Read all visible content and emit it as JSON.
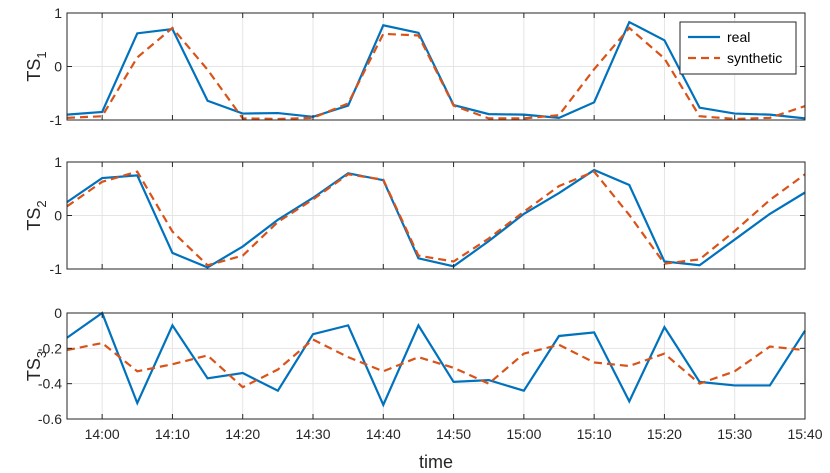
{
  "chart_data": [
    {
      "type": "line",
      "ylabel": "TS",
      "ylabel_sub": "1",
      "ylim": [
        -1,
        1
      ],
      "yticks": [
        -1,
        0,
        1
      ],
      "ytick_labels": [
        "-1",
        "0",
        "1"
      ],
      "grid": true,
      "legend": "top-right",
      "x": [
        "13:55",
        "14:00",
        "14:05",
        "14:10",
        "14:15",
        "14:20",
        "14:25",
        "14:30",
        "14:35",
        "14:40",
        "14:45",
        "14:50",
        "14:55",
        "15:00",
        "15:05",
        "15:10",
        "15:15",
        "15:20",
        "15:25",
        "15:30",
        "15:35",
        "15:40"
      ],
      "series": [
        {
          "name": "real",
          "color": "#0072BD",
          "dash": "solid",
          "values": [
            -0.9,
            -0.85,
            0.62,
            0.7,
            -0.64,
            -0.88,
            -0.87,
            -0.94,
            -0.73,
            0.77,
            0.63,
            -0.72,
            -0.89,
            -0.9,
            -0.96,
            -0.67,
            0.83,
            0.49,
            -0.77,
            -0.88,
            -0.9,
            -0.97
          ]
        },
        {
          "name": "synthetic",
          "color": "#D95319",
          "dash": "dashed",
          "values": [
            -0.96,
            -0.93,
            0.17,
            0.72,
            -0.06,
            -0.97,
            -0.98,
            -0.96,
            -0.69,
            0.61,
            0.58,
            -0.73,
            -0.97,
            -0.97,
            -0.91,
            -0.05,
            0.72,
            0.15,
            -0.93,
            -0.98,
            -0.96,
            -0.74
          ]
        }
      ]
    },
    {
      "type": "line",
      "ylabel": "TS",
      "ylabel_sub": "2",
      "ylim": [
        -1,
        1
      ],
      "yticks": [
        -1,
        0,
        1
      ],
      "ytick_labels": [
        "-1",
        "0",
        "1"
      ],
      "grid": true,
      "x": [
        "13:55",
        "14:00",
        "14:05",
        "14:10",
        "14:15",
        "14:20",
        "14:25",
        "14:30",
        "14:35",
        "14:40",
        "14:45",
        "14:50",
        "14:55",
        "15:00",
        "15:05",
        "15:10",
        "15:15",
        "15:20",
        "15:25",
        "15:30",
        "15:35",
        "15:40"
      ],
      "series": [
        {
          "name": "real",
          "color": "#0072BD",
          "dash": "solid",
          "values": [
            0.25,
            0.7,
            0.75,
            -0.7,
            -0.97,
            -0.58,
            -0.08,
            0.33,
            0.79,
            0.66,
            -0.8,
            -0.95,
            -0.48,
            0.03,
            0.42,
            0.85,
            0.57,
            -0.86,
            -0.93,
            -0.45,
            0.03,
            0.43
          ]
        },
        {
          "name": "synthetic",
          "color": "#D95319",
          "dash": "dashed",
          "values": [
            0.17,
            0.63,
            0.82,
            -0.3,
            -0.93,
            -0.75,
            -0.12,
            0.3,
            0.77,
            0.67,
            -0.75,
            -0.86,
            -0.43,
            0.07,
            0.55,
            0.82,
            0.01,
            -0.9,
            -0.82,
            -0.29,
            0.29,
            0.77
          ]
        }
      ]
    },
    {
      "type": "line",
      "ylabel": "TS",
      "ylabel_sub": "3",
      "xlabel": "time",
      "ylim": [
        -0.6,
        0
      ],
      "yticks": [
        -0.6,
        -0.4,
        -0.2,
        0
      ],
      "ytick_labels": [
        "-0.6",
        "-0.4",
        "-0.2",
        "0"
      ],
      "grid": true,
      "xticks": [
        "14:00",
        "14:10",
        "14:20",
        "14:30",
        "14:40",
        "14:50",
        "15:00",
        "15:10",
        "15:20",
        "15:30",
        "15:40"
      ],
      "x": [
        "13:55",
        "14:00",
        "14:05",
        "14:10",
        "14:15",
        "14:20",
        "14:25",
        "14:30",
        "14:35",
        "14:40",
        "14:45",
        "14:50",
        "14:55",
        "15:00",
        "15:05",
        "15:10",
        "15:15",
        "15:20",
        "15:25",
        "15:30",
        "15:35",
        "15:40"
      ],
      "series": [
        {
          "name": "real",
          "color": "#0072BD",
          "dash": "solid",
          "values": [
            -0.14,
            0.0,
            -0.51,
            -0.07,
            -0.37,
            -0.34,
            -0.44,
            -0.12,
            -0.07,
            -0.52,
            -0.07,
            -0.39,
            -0.38,
            -0.44,
            -0.13,
            -0.11,
            -0.5,
            -0.08,
            -0.39,
            -0.41,
            -0.41,
            -0.1
          ]
        },
        {
          "name": "synthetic",
          "color": "#D95319",
          "dash": "dashed",
          "values": [
            -0.21,
            -0.17,
            -0.33,
            -0.29,
            -0.24,
            -0.42,
            -0.32,
            -0.15,
            -0.25,
            -0.33,
            -0.25,
            -0.31,
            -0.4,
            -0.23,
            -0.18,
            -0.28,
            -0.3,
            -0.23,
            -0.4,
            -0.33,
            -0.19,
            -0.21
          ]
        }
      ]
    }
  ],
  "legend": {
    "entries": [
      {
        "label": "real",
        "color": "#0072BD",
        "dash": "solid"
      },
      {
        "label": "synthetic",
        "color": "#D95319",
        "dash": "dashed"
      }
    ]
  },
  "colors": {
    "real": "#0072BD",
    "synthetic": "#D95319",
    "grid": "#e5e5e5",
    "axis": "#262626"
  }
}
